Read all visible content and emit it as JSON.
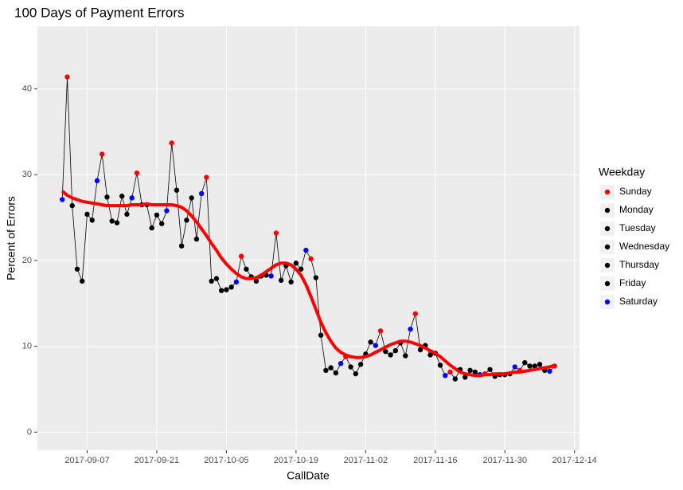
{
  "chart_data": {
    "type": "line",
    "title": "100 Days of Payment Errors",
    "x_label": "CallDate",
    "y_label": "Percent of Errors",
    "x": [
      "2017-09-02",
      "2017-09-03",
      "2017-09-04",
      "2017-09-05",
      "2017-09-06",
      "2017-09-07",
      "2017-09-08",
      "2017-09-09",
      "2017-09-10",
      "2017-09-11",
      "2017-09-12",
      "2017-09-13",
      "2017-09-14",
      "2017-09-15",
      "2017-09-16",
      "2017-09-17",
      "2017-09-18",
      "2017-09-19",
      "2017-09-20",
      "2017-09-21",
      "2017-09-22",
      "2017-09-23",
      "2017-09-24",
      "2017-09-25",
      "2017-09-26",
      "2017-09-27",
      "2017-09-28",
      "2017-09-29",
      "2017-09-30",
      "2017-10-01",
      "2017-10-02",
      "2017-10-03",
      "2017-10-04",
      "2017-10-05",
      "2017-10-06",
      "2017-10-07",
      "2017-10-08",
      "2017-10-09",
      "2017-10-10",
      "2017-10-11",
      "2017-10-12",
      "2017-10-13",
      "2017-10-14",
      "2017-10-15",
      "2017-10-16",
      "2017-10-17",
      "2017-10-18",
      "2017-10-19",
      "2017-10-20",
      "2017-10-21",
      "2017-10-22",
      "2017-10-23",
      "2017-10-24",
      "2017-10-25",
      "2017-10-26",
      "2017-10-27",
      "2017-10-28",
      "2017-10-29",
      "2017-10-30",
      "2017-10-31",
      "2017-11-01",
      "2017-11-02",
      "2017-11-03",
      "2017-11-04",
      "2017-11-05",
      "2017-11-06",
      "2017-11-07",
      "2017-11-08",
      "2017-11-09",
      "2017-11-10",
      "2017-11-11",
      "2017-11-12",
      "2017-11-13",
      "2017-11-14",
      "2017-11-15",
      "2017-11-16",
      "2017-11-17",
      "2017-11-18",
      "2017-11-19",
      "2017-11-20",
      "2017-11-21",
      "2017-11-22",
      "2017-11-23",
      "2017-11-24",
      "2017-11-25",
      "2017-11-26",
      "2017-11-27",
      "2017-11-28",
      "2017-11-29",
      "2017-11-30",
      "2017-12-01",
      "2017-12-02",
      "2017-12-03",
      "2017-12-04",
      "2017-12-05",
      "2017-12-06",
      "2017-12-07",
      "2017-12-08",
      "2017-12-09",
      "2017-12-10"
    ],
    "values": [
      27.1,
      41.4,
      26.4,
      19.0,
      17.6,
      25.4,
      24.7,
      29.3,
      32.4,
      27.4,
      24.6,
      24.4,
      27.5,
      25.4,
      27.3,
      30.2,
      26.5,
      26.5,
      23.8,
      25.3,
      24.3,
      25.8,
      33.7,
      28.2,
      21.7,
      24.7,
      27.3,
      22.5,
      27.8,
      29.7,
      17.6,
      17.9,
      16.5,
      16.6,
      16.9,
      17.5,
      20.5,
      19.0,
      18.1,
      17.6,
      18.2,
      18.3,
      18.2,
      23.2,
      17.7,
      19.4,
      17.5,
      19.7,
      19.0,
      21.2,
      20.2,
      18.0,
      11.3,
      7.2,
      7.5,
      6.9,
      8.0,
      8.8,
      7.6,
      6.8,
      7.9,
      9.1,
      10.5,
      10.1,
      11.8,
      9.4,
      9.0,
      9.5,
      10.4,
      8.9,
      12.0,
      13.8,
      9.6,
      10.1,
      9.0,
      9.2,
      7.8,
      6.6,
      7.0,
      6.2,
      7.3,
      6.4,
      7.2,
      7.0,
      6.7,
      6.8,
      7.3,
      6.5,
      6.7,
      6.7,
      6.8,
      7.6,
      7.2,
      8.1,
      7.7,
      7.7,
      7.9,
      7.2,
      7.1,
      7.7
    ],
    "line_color": "#000000",
    "trend": {
      "color": "#ff0000",
      "values": [
        28.1,
        27.6,
        27.3,
        27.1,
        26.9,
        26.8,
        26.7,
        26.6,
        26.5,
        26.4,
        26.4,
        26.4,
        26.4,
        26.4,
        26.5,
        26.5,
        26.5,
        26.6,
        26.5,
        26.5,
        26.5,
        26.5,
        26.5,
        26.4,
        26.2,
        25.8,
        25.2,
        24.5,
        23.7,
        22.9,
        22.0,
        21.2,
        20.3,
        19.6,
        19.0,
        18.5,
        18.1,
        17.9,
        17.9,
        18.0,
        18.3,
        18.7,
        19.1,
        19.5,
        19.7,
        19.7,
        19.5,
        19.0,
        18.3,
        17.2,
        15.8,
        14.3,
        12.8,
        11.6,
        10.6,
        9.8,
        9.3,
        9.0,
        8.8,
        8.7,
        8.7,
        8.8,
        9.0,
        9.3,
        9.6,
        9.9,
        10.2,
        10.4,
        10.6,
        10.6,
        10.5,
        10.3,
        10.1,
        9.8,
        9.5,
        9.2,
        8.8,
        8.3,
        7.8,
        7.4,
        7.0,
        6.8,
        6.7,
        6.6,
        6.6,
        6.7,
        6.7,
        6.8,
        6.8,
        6.8,
        6.9,
        7.0,
        7.0,
        7.1,
        7.2,
        7.3,
        7.4,
        7.5,
        7.6,
        7.8
      ]
    },
    "xlim": [
      "2017-08-28",
      "2017-12-15"
    ],
    "xticks": [
      "2017-09-07",
      "2017-09-21",
      "2017-10-05",
      "2017-10-19",
      "2017-11-02",
      "2017-11-16",
      "2017-11-30",
      "2017-12-14"
    ],
    "ylim": [
      -2.1,
      47.3
    ],
    "yticks": [
      0,
      10,
      20,
      30,
      40
    ],
    "grid": true,
    "legend": {
      "title": "Weekday",
      "position": "right",
      "names": [
        "Sunday",
        "Monday",
        "Tuesday",
        "Wednesday",
        "Thursday",
        "Friday",
        "Saturday"
      ],
      "colors": [
        "#ff0000",
        "#000000",
        "#000000",
        "#000000",
        "#000000",
        "#000000",
        "#0000ff"
      ]
    }
  }
}
